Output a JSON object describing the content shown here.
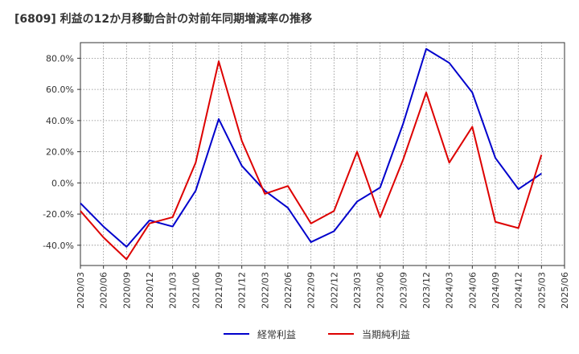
{
  "chart_data": {
    "type": "line",
    "title": "[6809]  利益の12か月移動合計の対前年同期増減率の推移",
    "xlabel": "",
    "ylabel": "",
    "ylim": [
      -53,
      90
    ],
    "yticks": [
      80,
      60,
      40,
      20,
      0,
      -20,
      -40
    ],
    "ytick_labels": [
      "80.0%",
      "60.0%",
      "40.0%",
      "20.0%",
      "0.0%",
      "-20.0%",
      "-40.0%"
    ],
    "x": [
      "2020/03",
      "2020/06",
      "2020/09",
      "2020/12",
      "2021/03",
      "2021/06",
      "2021/09",
      "2021/12",
      "2022/03",
      "2022/06",
      "2022/09",
      "2022/12",
      "2023/03",
      "2023/06",
      "2023/09",
      "2023/12",
      "2024/03",
      "2024/06",
      "2024/09",
      "2024/12",
      "2025/03",
      "2025/06"
    ],
    "grid": true,
    "legend_position": "bottom",
    "series": [
      {
        "name": "経常利益",
        "color": "#0000cc",
        "values": [
          -13,
          -28,
          -41,
          -24,
          -28,
          -5,
          41,
          11,
          -5,
          -16,
          -38,
          -31,
          -12,
          -3,
          38,
          86,
          77,
          58,
          16,
          -4,
          6,
          null
        ]
      },
      {
        "name": "当期純利益",
        "color": "#dd0000",
        "values": [
          -18,
          -35,
          -49,
          -26,
          -22,
          13,
          78,
          27,
          -7,
          -2,
          -26,
          -18,
          20,
          -22,
          15,
          58,
          13,
          36,
          -25,
          -29,
          18,
          null
        ]
      }
    ]
  }
}
